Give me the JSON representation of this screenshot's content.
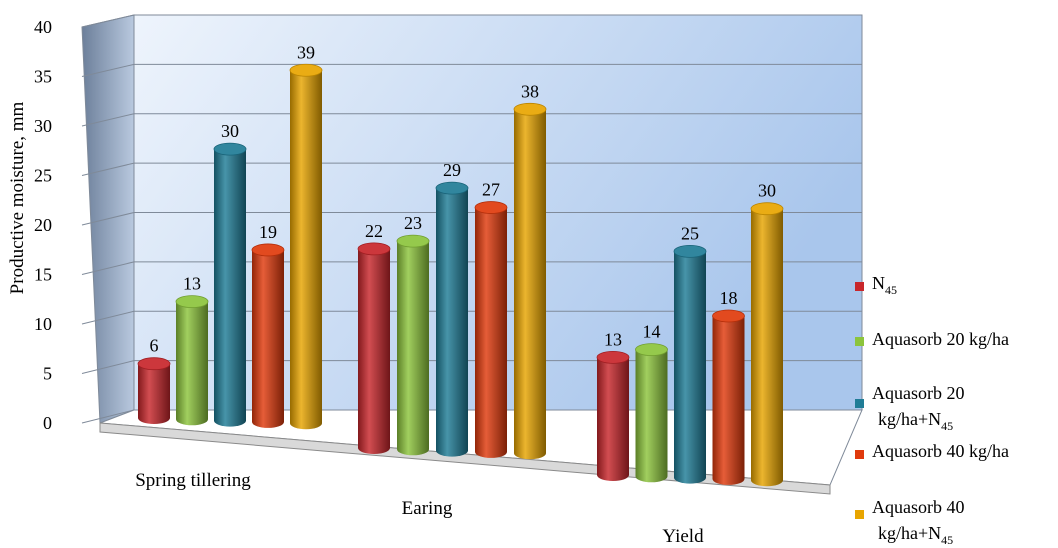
{
  "chart_data": {
    "type": "bar",
    "style": "3d-cylinder",
    "ylabel": "Productive moisture, mm",
    "xlabel": "",
    "ylim": [
      0,
      40
    ],
    "yticks": [
      0,
      5,
      10,
      15,
      20,
      25,
      30,
      35,
      40
    ],
    "grid": true,
    "legend_position": "right",
    "categories": [
      "Spring tillering",
      "Earing",
      "Yield"
    ],
    "series": [
      {
        "name": "N",
        "name_sub": "45",
        "color": "#c8262b",
        "values": [
          6,
          22,
          13
        ]
      },
      {
        "name": "Aquasorb 20 kg/ha",
        "name_sub": "",
        "color": "#8cc43c",
        "values": [
          13,
          23,
          14
        ]
      },
      {
        "name": "Aquasorb 20 kg/ha+N",
        "name_sub": "45",
        "color": "#1f7c96",
        "values": [
          30,
          29,
          25
        ]
      },
      {
        "name": "Aquasorb 40 kg/ha",
        "name_sub": "",
        "color": "#e03a0c",
        "values": [
          19,
          27,
          18
        ]
      },
      {
        "name": "Aquasorb 40 kg/ha+N",
        "name_sub": "45",
        "color": "#e8a500",
        "values": [
          39,
          38,
          30
        ]
      }
    ]
  }
}
